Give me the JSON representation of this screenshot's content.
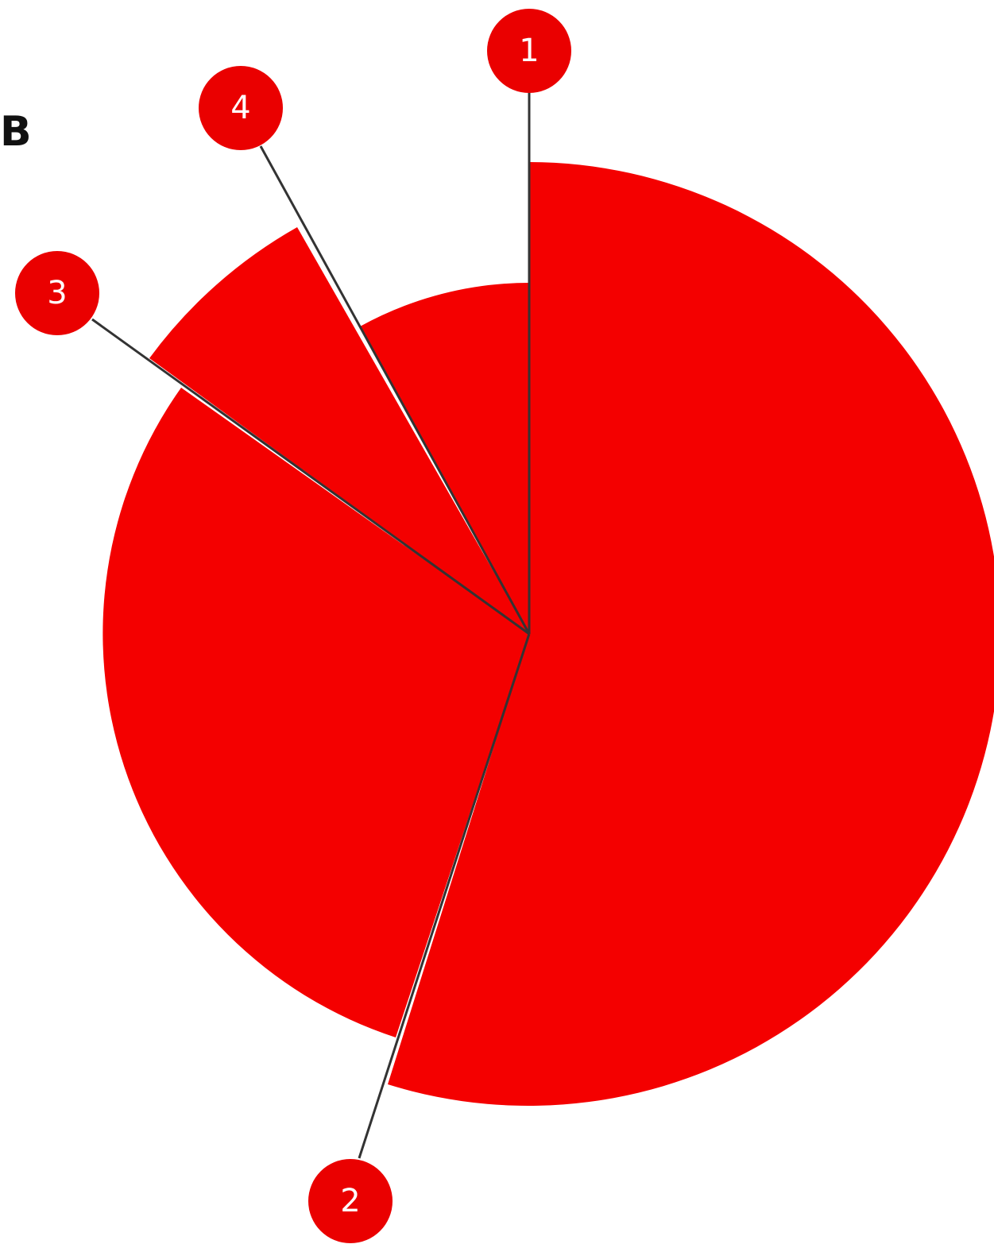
{
  "corner_label": "B",
  "colors": {
    "slice_fill": "#f40000",
    "callout_fill": "#ea0000",
    "leader_line": "#333333",
    "callout_text": "#ffffff"
  },
  "callouts": [
    {
      "number": "1"
    },
    {
      "number": "2"
    },
    {
      "number": "3"
    },
    {
      "number": "4"
    }
  ]
}
